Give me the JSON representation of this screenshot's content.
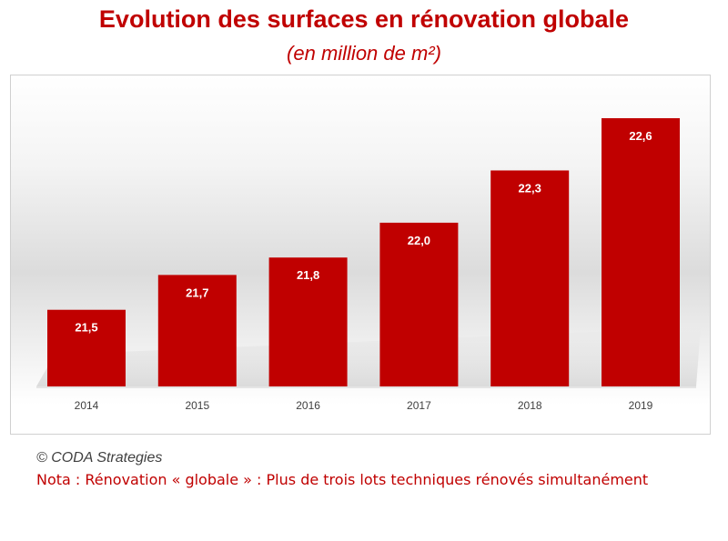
{
  "chart_data": {
    "type": "bar",
    "title": "Evolution des surfaces en rénovation globale",
    "subtitle": "(en million de m²)",
    "categories": [
      "2014",
      "2015",
      "2016",
      "2017",
      "2018",
      "2019"
    ],
    "values": [
      21.5,
      21.7,
      21.8,
      22.0,
      22.3,
      22.6
    ],
    "value_labels": [
      "21,5",
      "21,7",
      "21,8",
      "22,0",
      "22,3",
      "22,6"
    ],
    "xlabel": "",
    "ylabel": "",
    "ylim": [
      21.06,
      22.6
    ],
    "grid": false,
    "legend": "none",
    "bar_color": "#c00000"
  },
  "footer": {
    "copyright": "© CODA Strategies",
    "nota": "Nota : Rénovation « globale » : Plus de trois lots techniques rénovés simultanément"
  },
  "colors": {
    "accent": "#c00000",
    "label_text": "#ffffff",
    "tick_text": "#404040"
  }
}
